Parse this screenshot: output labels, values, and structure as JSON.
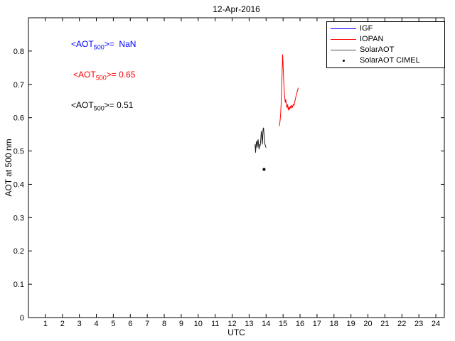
{
  "chart_data": {
    "type": "line",
    "title": "12-Apr-2016",
    "xlabel": "UTC",
    "ylabel": "AOT at 500 nm",
    "xlim": [
      0,
      24.5
    ],
    "ylim": [
      0,
      0.9
    ],
    "x_ticks": [
      1,
      2,
      3,
      4,
      5,
      6,
      7,
      8,
      9,
      10,
      11,
      12,
      13,
      14,
      15,
      16,
      17,
      18,
      19,
      20,
      21,
      22,
      23,
      24
    ],
    "y_ticks": [
      0,
      0.1,
      0.2,
      0.3,
      0.4,
      0.5,
      0.6,
      0.7,
      0.8
    ],
    "grid": false,
    "legend_position": "top-right",
    "series": [
      {
        "name": "IGF",
        "type": "line",
        "color": "#0000ff",
        "points": []
      },
      {
        "name": "IOPAN",
        "type": "line",
        "color": "#ff0000",
        "points": [
          [
            14.78,
            0.575
          ],
          [
            14.81,
            0.585
          ],
          [
            14.84,
            0.6
          ],
          [
            14.86,
            0.615
          ],
          [
            14.88,
            0.635
          ],
          [
            14.9,
            0.66
          ],
          [
            14.92,
            0.69
          ],
          [
            14.94,
            0.73
          ],
          [
            14.96,
            0.765
          ],
          [
            14.97,
            0.79
          ],
          [
            14.99,
            0.775
          ],
          [
            15.01,
            0.745
          ],
          [
            15.04,
            0.71
          ],
          [
            15.07,
            0.68
          ],
          [
            15.1,
            0.66
          ],
          [
            15.13,
            0.645
          ],
          [
            15.16,
            0.655
          ],
          [
            15.19,
            0.64
          ],
          [
            15.23,
            0.63
          ],
          [
            15.27,
            0.64
          ],
          [
            15.31,
            0.622
          ],
          [
            15.35,
            0.632
          ],
          [
            15.39,
            0.625
          ],
          [
            15.43,
            0.635
          ],
          [
            15.47,
            0.628
          ],
          [
            15.51,
            0.638
          ],
          [
            15.55,
            0.63
          ],
          [
            15.6,
            0.64
          ],
          [
            15.65,
            0.637
          ],
          [
            15.7,
            0.65
          ],
          [
            15.75,
            0.662
          ],
          [
            15.8,
            0.672
          ],
          [
            15.85,
            0.682
          ],
          [
            15.9,
            0.69
          ]
        ]
      },
      {
        "name": "SolarAOT",
        "type": "line",
        "color": "#1a1a1a",
        "points": [
          [
            13.35,
            0.52
          ],
          [
            13.38,
            0.495
          ],
          [
            13.41,
            0.52
          ],
          [
            13.44,
            0.53
          ],
          [
            13.47,
            0.51
          ],
          [
            13.5,
            0.525
          ],
          [
            13.53,
            0.535
          ],
          [
            13.56,
            0.515
          ],
          [
            13.59,
            0.505
          ],
          [
            13.62,
            0.52
          ],
          [
            13.65,
            0.515
          ],
          [
            13.68,
            0.53
          ],
          [
            13.72,
            0.56
          ],
          [
            13.75,
            0.545
          ],
          [
            13.78,
            0.52
          ],
          [
            13.82,
            0.565
          ],
          [
            13.85,
            0.57
          ],
          [
            13.88,
            0.55
          ],
          [
            13.92,
            0.525
          ],
          [
            13.96,
            0.515
          ],
          [
            14.0,
            0.51
          ]
        ]
      },
      {
        "name": "SolarAOT CIMEL",
        "type": "scatter",
        "color": "#000000",
        "points": [
          [
            13.88,
            0.445
          ]
        ]
      }
    ]
  },
  "legend": {
    "items": [
      {
        "label": "IGF",
        "color": "#0000ff",
        "marker": "line"
      },
      {
        "label": "IOPAN",
        "color": "#ff0000",
        "marker": "line"
      },
      {
        "label": "SolarAOT",
        "color": "#4d4d4d",
        "marker": "line"
      },
      {
        "label": "SolarAOT CIMEL",
        "color": "#000000",
        "marker": "dot"
      }
    ]
  },
  "annotations": [
    {
      "pre": "<AOT",
      "sub": "500",
      "post": ">=  NaN",
      "color": "#0000ff"
    },
    {
      "pre": "<AOT",
      "sub": "500",
      "post": ">= 0.65",
      "color": "#ff0000"
    },
    {
      "pre": "<AOT",
      "sub": "500",
      "post": ">= 0.51",
      "color": "#000000"
    }
  ]
}
